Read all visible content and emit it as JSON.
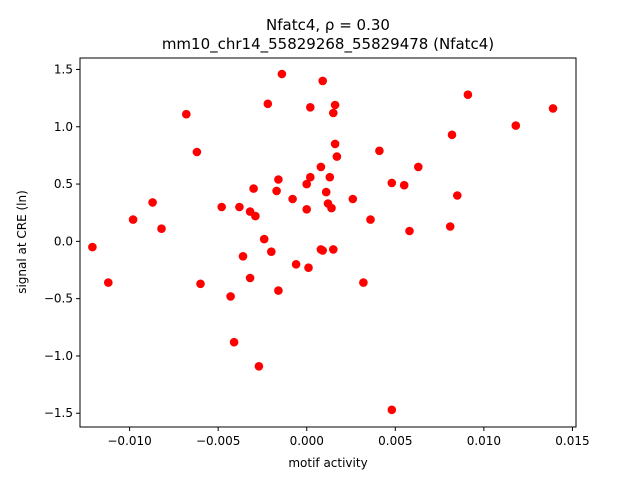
{
  "chart_data": {
    "type": "scatter",
    "title_line1": "Nfatc4, ρ = 0.30",
    "title_line2": "mm10_chr14_55829268_55829478 (Nfatc4)",
    "xlabel": "motif activity",
    "ylabel": "signal at CRE (ln)",
    "xlim": [
      -0.0128,
      0.0152
    ],
    "ylim": [
      -1.62,
      1.6
    ],
    "xticks": [
      -0.01,
      -0.005,
      0.0,
      0.005,
      0.01,
      0.015
    ],
    "xtick_labels": [
      "−0.010",
      "−0.005",
      "0.000",
      "0.005",
      "0.010",
      "0.015"
    ],
    "yticks": [
      -1.5,
      -1.0,
      -0.5,
      0.0,
      0.5,
      1.0,
      1.5
    ],
    "ytick_labels": [
      "−1.5",
      "−1.0",
      "−0.5",
      "0.0",
      "0.5",
      "1.0",
      "1.5"
    ],
    "grid": false,
    "marker_color": "#ff0000",
    "points": [
      [
        -0.0121,
        -0.05
      ],
      [
        -0.0112,
        -0.36
      ],
      [
        -0.0098,
        0.19
      ],
      [
        -0.0087,
        0.34
      ],
      [
        -0.0082,
        0.11
      ],
      [
        -0.0068,
        1.11
      ],
      [
        -0.0062,
        0.78
      ],
      [
        -0.006,
        -0.37
      ],
      [
        -0.0048,
        0.3
      ],
      [
        -0.0043,
        -0.48
      ],
      [
        -0.0041,
        -0.88
      ],
      [
        -0.0038,
        0.3
      ],
      [
        -0.0036,
        -0.13
      ],
      [
        -0.0032,
        0.26
      ],
      [
        -0.0032,
        -0.32
      ],
      [
        -0.003,
        0.46
      ],
      [
        -0.0029,
        0.22
      ],
      [
        -0.0027,
        -1.09
      ],
      [
        -0.0024,
        0.02
      ],
      [
        -0.0022,
        1.2
      ],
      [
        -0.002,
        -0.09
      ],
      [
        -0.0017,
        0.44
      ],
      [
        -0.0016,
        0.54
      ],
      [
        -0.0016,
        -0.43
      ],
      [
        -0.0014,
        1.46
      ],
      [
        -0.0008,
        0.37
      ],
      [
        -0.0006,
        -0.2
      ],
      [
        0.0,
        0.5
      ],
      [
        0.0,
        0.28
      ],
      [
        0.0001,
        -0.23
      ],
      [
        0.0002,
        0.56
      ],
      [
        0.0002,
        1.17
      ],
      [
        0.0008,
        -0.07
      ],
      [
        0.0008,
        0.65
      ],
      [
        0.0009,
        1.4
      ],
      [
        0.0009,
        -0.08
      ],
      [
        0.0011,
        0.43
      ],
      [
        0.0012,
        0.33
      ],
      [
        0.0013,
        0.56
      ],
      [
        0.0014,
        0.29
      ],
      [
        0.0015,
        1.12
      ],
      [
        0.0015,
        -0.07
      ],
      [
        0.0016,
        0.85
      ],
      [
        0.0016,
        1.19
      ],
      [
        0.0017,
        0.74
      ],
      [
        0.0026,
        0.37
      ],
      [
        0.0032,
        -0.36
      ],
      [
        0.0036,
        0.19
      ],
      [
        0.0041,
        0.79
      ],
      [
        0.0048,
        0.51
      ],
      [
        0.0048,
        -1.47
      ],
      [
        0.0055,
        0.49
      ],
      [
        0.0058,
        0.09
      ],
      [
        0.0063,
        0.65
      ],
      [
        0.0081,
        0.13
      ],
      [
        0.0082,
        0.93
      ],
      [
        0.0085,
        0.4
      ],
      [
        0.0091,
        1.28
      ],
      [
        0.0118,
        1.01
      ],
      [
        0.0139,
        1.16
      ]
    ]
  }
}
